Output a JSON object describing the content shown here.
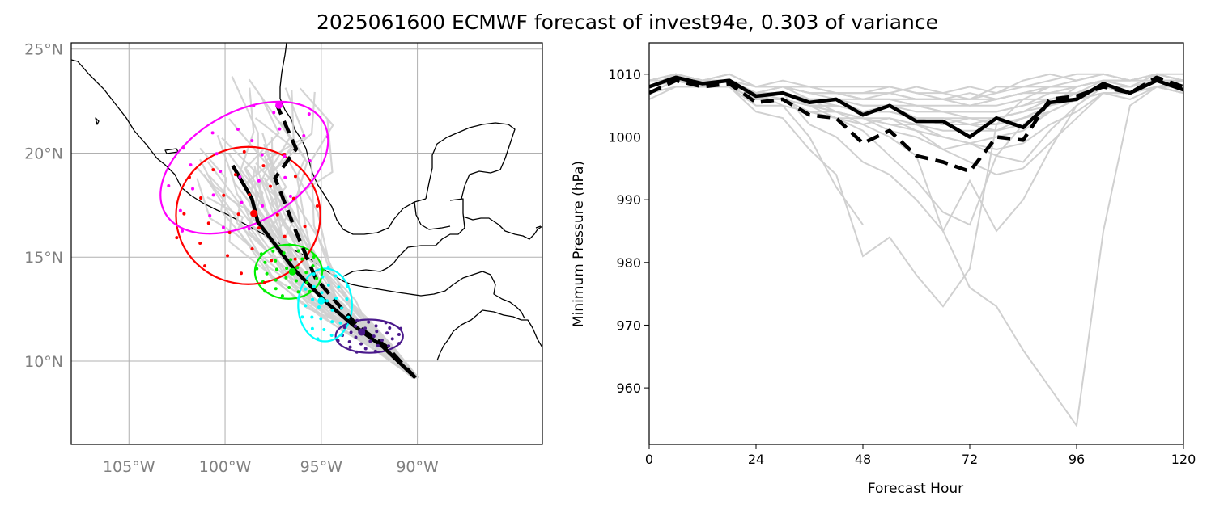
{
  "title": "2025061600 ECMWF forecast of invest94e, 0.303 of variance",
  "colors": {
    "ensemble": "#d0d0d0",
    "mean": "#000000",
    "coast": "#000000",
    "grid": "#b0b0b0",
    "ellipse_24h": "#4b1a8c",
    "ellipse_48h": "#00ffff",
    "ellipse_72h": "#00ee00",
    "ellipse_96h": "#ff0000",
    "ellipse_120h": "#ff00ff"
  },
  "chart_data": [
    {
      "type": "scatter",
      "name": "track-map",
      "lon_range": [
        -108,
        -83.5
      ],
      "lat_range": [
        6,
        25.3
      ],
      "x_ticks": [
        -105,
        -100,
        -95,
        -90
      ],
      "x_tick_labels": [
        "105°W",
        "100°W",
        "95°W",
        "90°W"
      ],
      "y_ticks": [
        10,
        15,
        20,
        25
      ],
      "y_tick_labels": [
        "10°N",
        "15°N",
        "20°N",
        "25°N"
      ],
      "grid": true,
      "series": [
        {
          "style": "solid",
          "points": [
            [
              -90.1,
              9.2
            ],
            [
              -91.8,
              10.7
            ],
            [
              -93.3,
              11.7
            ],
            [
              -94.7,
              12.8
            ],
            [
              -96.4,
              14.4
            ],
            [
              -98.3,
              16.7
            ],
            [
              -98.6,
              17.8
            ],
            [
              -99.6,
              19.4
            ]
          ]
        },
        {
          "style": "dashed",
          "points": [
            [
              -90.1,
              9.2
            ],
            [
              -91.6,
              10.7
            ],
            [
              -93.0,
              11.6
            ],
            [
              -94.0,
              12.6
            ],
            [
              -95.3,
              14.0
            ],
            [
              -96.3,
              16.2
            ],
            [
              -97.4,
              18.8
            ],
            [
              -96.3,
              20.2
            ],
            [
              -97.3,
              22.3
            ]
          ]
        }
      ],
      "centers": [
        {
          "hour": 24,
          "lon": -92.9,
          "lat": 11.4
        },
        {
          "hour": 48,
          "lon": -95.0,
          "lat": 12.9
        },
        {
          "hour": 72,
          "lon": -96.5,
          "lat": 14.3
        },
        {
          "hour": 96,
          "lon": -98.5,
          "lat": 17.1
        },
        {
          "hour": 120,
          "lon": -97.2,
          "lat": 22.3
        }
      ],
      "ellipses": [
        {
          "hour": 24,
          "lon": -92.5,
          "lat": 11.2,
          "width_deg": 3.5,
          "height_deg": 1.6,
          "angle": 0
        },
        {
          "hour": 48,
          "lon": -94.8,
          "lat": 12.7,
          "width_deg": 2.8,
          "height_deg": 3.5,
          "angle": 0
        },
        {
          "hour": 72,
          "lon": -96.7,
          "lat": 14.3,
          "width_deg": 3.5,
          "height_deg": 2.6,
          "angle": 0
        },
        {
          "hour": 96,
          "lon": -98.8,
          "lat": 17.0,
          "width_deg": 7.5,
          "height_deg": 6.6,
          "angle": 0
        },
        {
          "hour": 120,
          "lon": -99.0,
          "lat": 19.3,
          "width_deg": 9.5,
          "height_deg": 5.3,
          "angle": 30
        }
      ]
    },
    {
      "type": "line",
      "name": "pressure",
      "xlabel": "Forecast Hour",
      "ylabel": "Minimum Pressure (hPa)",
      "xlim": [
        0,
        120
      ],
      "ylim": [
        951,
        1015
      ],
      "x_ticks": [
        0,
        24,
        48,
        72,
        96,
        120
      ],
      "y_ticks": [
        960,
        970,
        980,
        990,
        1000,
        1010
      ],
      "x": [
        0,
        6,
        12,
        18,
        24,
        30,
        36,
        42,
        48,
        54,
        60,
        66,
        72,
        78,
        84,
        90,
        96,
        102,
        108,
        114,
        120
      ],
      "mean_solid": [
        1008,
        1009.5,
        1008.5,
        1009,
        1006.5,
        1007,
        1005.5,
        1006,
        1003.5,
        1005,
        1002.5,
        1002.5,
        1000,
        1003,
        1001.5,
        1005.5,
        1006,
        1008.5,
        1007,
        1009,
        1007.5
      ],
      "mean_dashed": [
        1007,
        1009,
        1008,
        1008.5,
        1005.5,
        1006,
        1003.5,
        1003,
        999,
        1001,
        997,
        996,
        994.5,
        1000,
        999.5,
        1006,
        1006.5,
        1008,
        1007,
        1009.5,
        1008
      ],
      "members": [
        [
          1009,
          1010,
          1009,
          1009,
          1006,
          1007,
          1002,
          1000,
          996,
          994,
          990,
          985,
          976,
          973,
          966,
          960,
          954,
          985,
          1005,
          1008,
          1009
        ],
        [
          1008,
          1009,
          1008,
          1008,
          1004,
          1003,
          998,
          994,
          981,
          984,
          978,
          973,
          979,
          1002,
          1006,
          1008,
          1009,
          1010,
          1009,
          1010,
          1009
        ],
        [
          1007,
          1009,
          1008,
          1009,
          1007,
          1005,
          1000,
          992,
          986
        ],
        [
          1008,
          1009,
          1009,
          1009,
          1006,
          1006,
          1005,
          1003,
          1001,
          997,
          993,
          988,
          986,
          997,
          1002,
          1005,
          1008,
          1009,
          1008,
          1009,
          1008
        ],
        [
          1008,
          1010,
          1009,
          1009,
          1007,
          1007,
          1006,
          1004,
          1002,
          1000,
          997,
          985,
          993,
          985,
          990,
          998,
          1005,
          1008,
          1007,
          1008,
          1008
        ],
        [
          1007,
          1008,
          1008,
          1008,
          1005,
          1005,
          1004,
          1003,
          1002,
          1003,
          1001,
          998,
          999,
          997,
          996,
          1001,
          1005,
          1008,
          1007,
          1009,
          1008
        ],
        [
          1008,
          1009,
          1008,
          1009,
          1008,
          1008,
          1007,
          1007,
          1006,
          1006,
          1005,
          1004,
          1003,
          1003,
          1004,
          1006,
          1007,
          1008,
          1008,
          1009,
          1008
        ],
        [
          1009,
          1010,
          1009,
          1010,
          1008,
          1009,
          1008,
          1008,
          1008,
          1008,
          1007,
          1007,
          1008,
          1007,
          1009,
          1010,
          1009,
          1010,
          1009,
          1010,
          1009
        ],
        [
          1008,
          1009,
          1009,
          1009,
          1007,
          1008,
          1008,
          1007,
          1007,
          1007,
          1006,
          1006,
          1005,
          1006,
          1007,
          1007,
          1008,
          1009,
          1008,
          1010,
          1009
        ],
        [
          1006,
          1008,
          1008,
          1008,
          1006,
          1006,
          1005,
          1005,
          1004,
          1004,
          1003,
          1002,
          1002,
          1001,
          1003,
          1004,
          1006,
          1007,
          1007,
          1008,
          1007
        ],
        [
          1009,
          1009,
          1009,
          1009,
          1008,
          1008,
          1007,
          1007,
          1007,
          1007,
          1008,
          1007,
          1006,
          1008,
          1008,
          1009,
          1010,
          1010,
          1009,
          1010,
          1010
        ],
        [
          1008,
          1009,
          1008,
          1009,
          1007,
          1007,
          1005,
          1004,
          1003,
          1001,
          1000,
          998,
          996,
          994,
          995,
          999,
          1003,
          1007,
          1006,
          1008,
          1007
        ],
        [
          1007,
          1008,
          1008,
          1008,
          1006,
          1006,
          1004,
          1003,
          1003,
          1002,
          1001,
          1000,
          999,
          998,
          999,
          1002,
          1004,
          1007,
          1007,
          1008,
          1007
        ],
        [
          1008,
          1009,
          1009,
          1009,
          1007,
          1007,
          1006,
          1006,
          1005,
          1005,
          1005,
          1004,
          1004,
          1004,
          1005,
          1006,
          1007,
          1008,
          1008,
          1009,
          1008
        ],
        [
          1009,
          1010,
          1009,
          1009,
          1008,
          1008,
          1007,
          1007,
          1006,
          1007,
          1006,
          1006,
          1007,
          1006,
          1007,
          1008,
          1008,
          1009,
          1009,
          1010,
          1009
        ],
        [
          1008,
          1009,
          1008,
          1008,
          1007,
          1006,
          1005,
          1004,
          1003,
          1003,
          1002,
          1001,
          1001,
          1001,
          1002,
          1004,
          1006,
          1007,
          1007,
          1008,
          1007
        ],
        [
          1007,
          1009,
          1009,
          1009,
          1007,
          1008,
          1006,
          1006,
          1004,
          1005,
          1003,
          1002,
          1003,
          1002,
          1003,
          1005,
          1007,
          1008,
          1008,
          1009,
          1008
        ],
        [
          1008,
          1009,
          1008,
          1009,
          1007,
          1007,
          1006,
          1005,
          1004,
          1004,
          1003,
          1003,
          1002,
          1003,
          1004,
          1005,
          1007,
          1008,
          1007,
          1008,
          1008
        ],
        [
          1009,
          1010,
          1009,
          1010,
          1008,
          1008,
          1008,
          1007,
          1007,
          1008,
          1007,
          1006,
          1006,
          1007,
          1008,
          1008,
          1008,
          1009,
          1009,
          1010,
          1009
        ],
        [
          1008,
          1009,
          1008,
          1009,
          1007,
          1007,
          1006,
          1006,
          1005,
          1005,
          1004,
          1004,
          1004,
          1004,
          1005,
          1007,
          1007,
          1009,
          1008,
          1009,
          1008
        ],
        [
          1007,
          1008,
          1008,
          1008,
          1006,
          1006,
          1004,
          1004,
          1003,
          1002,
          1002,
          1000,
          999,
          1000,
          1001,
          1004,
          1006,
          1007,
          1007,
          1009,
          1008
        ],
        [
          1008,
          1009,
          1009,
          1009,
          1007,
          1008,
          1007,
          1006,
          1006,
          1006,
          1005,
          1005,
          1005,
          1005,
          1006,
          1006,
          1007,
          1008,
          1008,
          1009,
          1008
        ],
        [
          1009,
          1010,
          1009,
          1009,
          1008,
          1008,
          1007,
          1007,
          1006,
          1006,
          1006,
          1006,
          1005,
          1006,
          1007,
          1007,
          1008,
          1009,
          1008,
          1009,
          1009
        ],
        [
          1008,
          1009,
          1008,
          1009,
          1007,
          1007,
          1005,
          1005,
          1004,
          1004,
          1003,
          1003,
          1003,
          1003,
          1004,
          1006,
          1007,
          1008,
          1008,
          1009,
          1008
        ],
        [
          1008,
          1009,
          1008,
          1008,
          1006,
          1006,
          1005,
          1005,
          1004,
          1004,
          1003,
          1002,
          1002,
          1002,
          1003,
          1005,
          1006,
          1008,
          1007,
          1008,
          1008
        ],
        [
          1009,
          1010,
          1009,
          1010,
          1008,
          1008,
          1007,
          1007,
          1007,
          1007,
          1006,
          1006,
          1006,
          1006,
          1007,
          1008,
          1008,
          1009,
          1009,
          1009,
          1009
        ]
      ]
    }
  ]
}
